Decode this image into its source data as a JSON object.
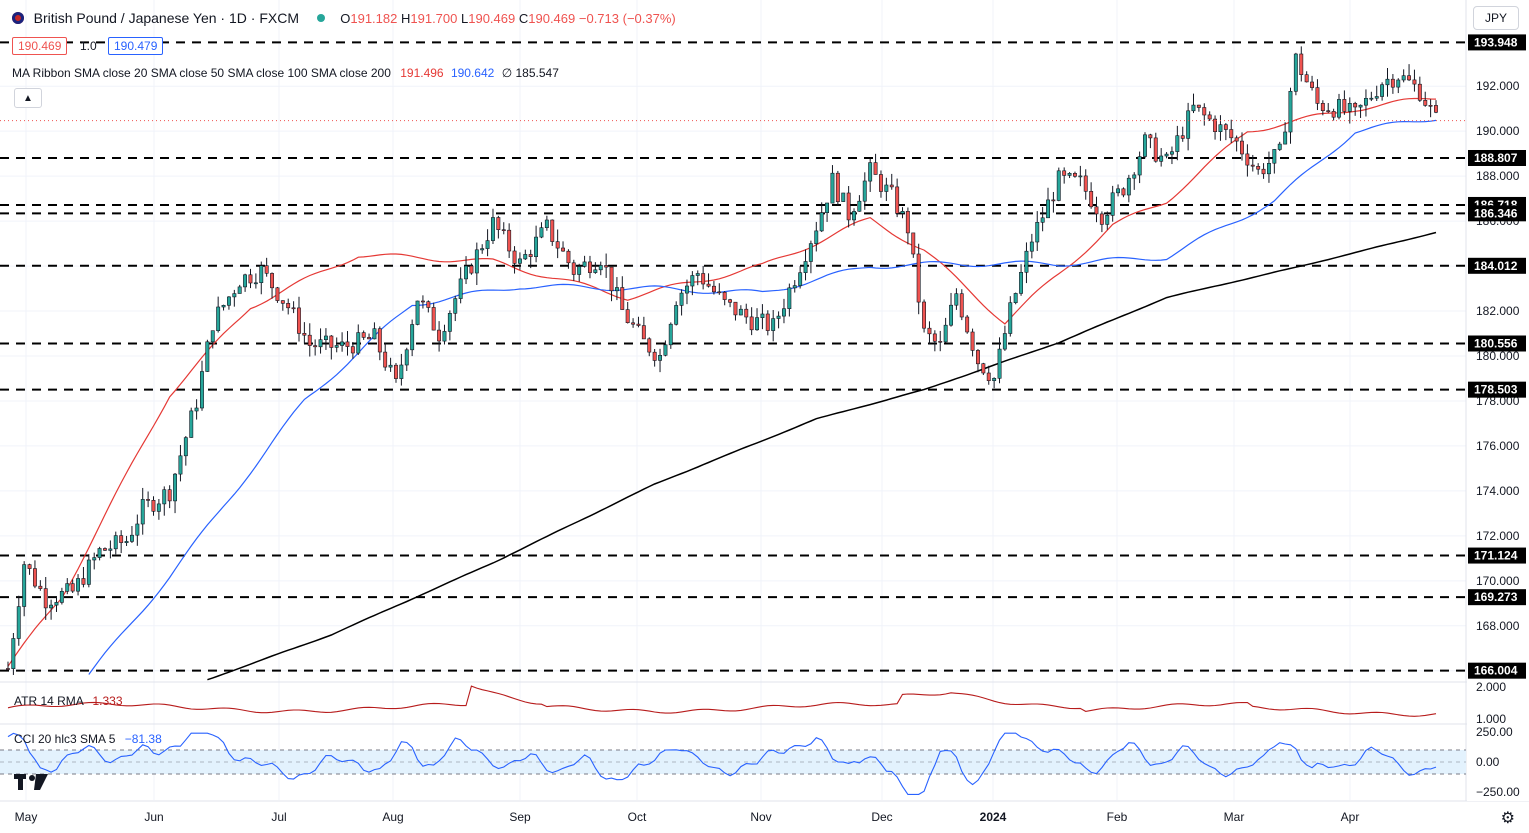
{
  "header": {
    "symbol_title": "British Pound / Japanese Yen · 1D · FXCM",
    "open_label": "O",
    "open": "191.182",
    "high_label": "H",
    "high": "191.700",
    "low_label": "L",
    "low": "190.469",
    "close_label": "C",
    "close": "190.469",
    "change": "−0.713 (−0.37%)",
    "bid": "190.469",
    "spread": "1.0",
    "ask": "190.479",
    "currency": "JPY"
  },
  "ma_ribbon": {
    "label": "MA Ribbon SMA close 20 SMA close 50 SMA close 100 SMA close 200",
    "v20": "191.496",
    "v50": "190.642",
    "v100": "∅",
    "v200": "185.547"
  },
  "colors": {
    "up": "#26a69a",
    "down": "#ef5350",
    "wick": "#131722",
    "sma20": "#e53935",
    "sma50": "#2962ff",
    "sma200": "#000000",
    "atr": "#b71c1c",
    "cci": "#2962ff",
    "cci_band": "#e3f2fd",
    "tag": "#000000"
  },
  "atr": {
    "label": "ATR 14 RMA",
    "value": "1.333"
  },
  "cci": {
    "label": "CCI 20 hlc3 SMA 5",
    "value": "−81.38"
  },
  "icons": {
    "collapse": "chevron-up-icon",
    "settings": "gear-icon",
    "logo": "tradingview-logo-icon",
    "flag": "gbp-jpy-flag-icon"
  },
  "chart_data": {
    "type": "candlestick",
    "title": "British Pound / Japanese Yen · 1D · FXCM",
    "x_labels": [
      "May",
      "Jun",
      "Jul",
      "Aug",
      "Sep",
      "Oct",
      "Nov",
      "Dec",
      "2024",
      "Feb",
      "Mar",
      "Apr"
    ],
    "y_ticks": [
      "192.000",
      "190.000",
      "188.000",
      "186.000",
      "184.000",
      "182.000",
      "180.000",
      "178.000",
      "176.000",
      "174.000",
      "172.000",
      "170.000",
      "168.000",
      "166.000"
    ],
    "ylim": [
      165.5,
      194.5
    ],
    "horizontal_levels": [
      193.948,
      188.807,
      186.718,
      186.346,
      184.012,
      180.556,
      178.503,
      171.124,
      169.273,
      166.004
    ],
    "level_labels": [
      "193.948",
      "188.807",
      "186.718",
      "186.346",
      "184.012",
      "180.556",
      "178.503",
      "171.124",
      "169.273",
      "166.004"
    ],
    "series": [
      {
        "name": "SMA 20",
        "anchors": [
          [
            0,
            166.2
          ],
          [
            10,
            169.3
          ],
          [
            30,
            178.3
          ],
          [
            45,
            182.2
          ],
          [
            65,
            184.5
          ],
          [
            90,
            184.2
          ],
          [
            115,
            182.6
          ],
          [
            140,
            184.0
          ],
          [
            160,
            186.1
          ],
          [
            170,
            184.7
          ],
          [
            185,
            181.5
          ],
          [
            205,
            185.8
          ],
          [
            215,
            186.9
          ],
          [
            230,
            190.0
          ],
          [
            250,
            191.0
          ],
          [
            265,
            191.5
          ]
        ]
      },
      {
        "name": "SMA 50",
        "anchors": [
          [
            15,
            165.8
          ],
          [
            30,
            170.2
          ],
          [
            55,
            178.0
          ],
          [
            75,
            182.3
          ],
          [
            95,
            183.1
          ],
          [
            120,
            183.0
          ],
          [
            140,
            182.8
          ],
          [
            160,
            184.0
          ],
          [
            175,
            184.1
          ],
          [
            195,
            184.1
          ],
          [
            215,
            184.4
          ],
          [
            235,
            186.9
          ],
          [
            250,
            190.0
          ],
          [
            265,
            190.6
          ]
        ]
      },
      {
        "name": "SMA 200",
        "anchors": [
          [
            37,
            165.6
          ],
          [
            60,
            167.6
          ],
          [
            90,
            170.8
          ],
          [
            120,
            174.3
          ],
          [
            150,
            177.2
          ],
          [
            170,
            178.5
          ],
          [
            195,
            180.6
          ],
          [
            215,
            182.6
          ],
          [
            240,
            184.0
          ],
          [
            265,
            185.5
          ]
        ]
      }
    ],
    "price_path": [
      [
        0,
        166.1
      ],
      [
        3,
        170.8
      ],
      [
        7,
        169.2
      ],
      [
        12,
        169.5
      ],
      [
        17,
        171.3
      ],
      [
        22,
        171.8
      ],
      [
        25,
        173.2
      ],
      [
        30,
        174.0
      ],
      [
        35,
        178.0
      ],
      [
        38,
        181.5
      ],
      [
        43,
        183.4
      ],
      [
        47,
        183.8
      ],
      [
        52,
        182.2
      ],
      [
        56,
        180.5
      ],
      [
        62,
        180.4
      ],
      [
        68,
        180.8
      ],
      [
        72,
        178.7
      ],
      [
        76,
        182.6
      ],
      [
        80,
        181.0
      ],
      [
        85,
        183.6
      ],
      [
        90,
        185.9
      ],
      [
        95,
        184.1
      ],
      [
        100,
        185.7
      ],
      [
        105,
        183.8
      ],
      [
        110,
        184.4
      ],
      [
        114,
        182.0
      ],
      [
        118,
        180.6
      ],
      [
        121,
        180.0
      ],
      [
        124,
        182.6
      ],
      [
        128,
        183.7
      ],
      [
        133,
        182.3
      ],
      [
        138,
        181.6
      ],
      [
        142,
        181.3
      ],
      [
        146,
        183.5
      ],
      [
        150,
        185.8
      ],
      [
        153,
        187.8
      ],
      [
        156,
        186.3
      ],
      [
        160,
        188.2
      ],
      [
        164,
        187.1
      ],
      [
        167,
        185.7
      ],
      [
        170,
        181.0
      ],
      [
        173,
        180.4
      ],
      [
        176,
        182.8
      ],
      [
        180,
        179.8
      ],
      [
        183,
        179.0
      ],
      [
        186,
        182.0
      ],
      [
        190,
        185.2
      ],
      [
        195,
        187.8
      ],
      [
        199,
        187.7
      ],
      [
        203,
        186.3
      ],
      [
        207,
        187.5
      ],
      [
        211,
        189.5
      ],
      [
        215,
        188.6
      ],
      [
        220,
        191.0
      ],
      [
        224,
        190.3
      ],
      [
        228,
        189.5
      ],
      [
        232,
        188.2
      ],
      [
        236,
        189.0
      ],
      [
        239,
        193.2
      ],
      [
        243,
        191.2
      ],
      [
        247,
        191.0
      ],
      [
        250,
        190.7
      ],
      [
        255,
        192.2
      ],
      [
        258,
        192.5
      ],
      [
        262,
        191.8
      ],
      [
        265,
        190.5
      ]
    ],
    "n_candles": 266,
    "indicators": {
      "atr": {
        "label": "ATR 14 RMA",
        "value": 1.333,
        "ticks": [
          "2.000",
          "1.000"
        ],
        "ylim": [
          0.9,
          2.1
        ]
      },
      "cci": {
        "label": "CCI 20 hlc3 SMA 5",
        "value": -81.38,
        "ticks": [
          "250.00",
          "0.00",
          "−250.00"
        ],
        "band": [
          -100,
          100
        ],
        "ylim": [
          -300,
          300
        ]
      }
    },
    "grid": true
  }
}
